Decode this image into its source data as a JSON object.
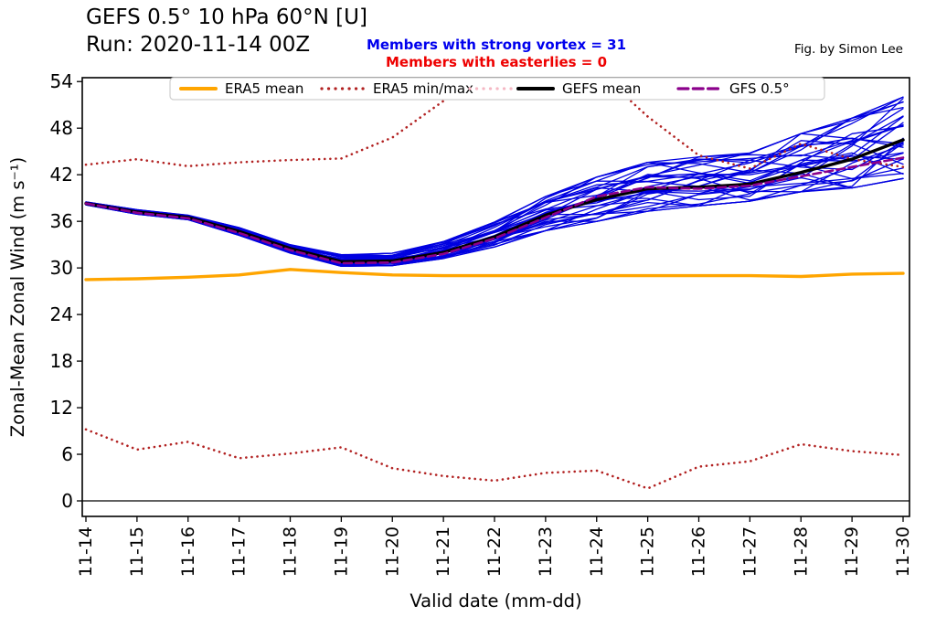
{
  "chart_data": {
    "type": "line",
    "title": "GEFS 0.5° 10 hPa 60°N [U]",
    "subtitle": "Run: 2020-11-14 00Z",
    "xlabel": "Valid date (mm-dd)",
    "ylabel": "Zonal-Mean Zonal Wind (m s⁻¹)",
    "x_ticklabels": [
      "11-14",
      "11-15",
      "11-16",
      "11-17",
      "11-18",
      "11-19",
      "11-20",
      "11-21",
      "11-22",
      "11-23",
      "11-24",
      "11-25",
      "11-26",
      "11-27",
      "11-28",
      "11-29",
      "11-30"
    ],
    "y_ticks": [
      0,
      6,
      12,
      18,
      24,
      30,
      36,
      42,
      48,
      54
    ],
    "ylim": [
      -2,
      54.5
    ],
    "grid": false,
    "legend_position": "top center inside",
    "series": [
      {
        "id": "era5-min",
        "name": "ERA5 min",
        "color": "#b22222",
        "style": "dotted",
        "width": 2.6,
        "values": [
          9.2,
          6.6,
          7.6,
          5.5,
          6.1,
          6.9,
          4.2,
          3.2,
          2.6,
          3.6,
          3.9,
          1.6,
          4.4,
          5.1,
          7.3,
          6.4,
          5.9
        ]
      },
      {
        "id": "era5-max",
        "name": "ERA5 max",
        "color": "#b22222",
        "style": "dotted",
        "width": 2.6,
        "values": [
          43.3,
          44.0,
          43.1,
          43.6,
          43.9,
          44.1,
          46.8,
          51.5,
          55.5,
          57.0,
          55.5,
          49.5,
          44.5,
          42.8,
          46.0,
          44.0,
          43.0
        ]
      },
      {
        "id": "era5-mean",
        "name": "ERA5 mean",
        "color": "#ffa500",
        "style": "solid",
        "width": 3.4,
        "values": [
          28.5,
          28.6,
          28.8,
          29.1,
          29.8,
          29.4,
          29.1,
          29.0,
          29.0,
          29.0,
          29.0,
          29.0,
          29.0,
          29.0,
          28.9,
          29.2,
          29.3
        ]
      },
      {
        "id": "gefs-mean",
        "name": "GEFS mean",
        "color": "#000000",
        "style": "solid",
        "width": 3.4,
        "values": [
          38.3,
          37.2,
          36.5,
          34.7,
          32.5,
          30.8,
          30.9,
          32.0,
          34.0,
          36.8,
          38.8,
          40.2,
          40.4,
          40.8,
          42.3,
          44.0,
          46.5
        ]
      },
      {
        "id": "gfs-05",
        "name": "GFS 0.5°",
        "color": "#8b008b",
        "style": "dashed",
        "width": 2.6,
        "values": [
          38.3,
          37.1,
          36.4,
          34.5,
          32.3,
          30.6,
          30.7,
          31.8,
          33.8,
          36.5,
          39.2,
          40.4,
          40.2,
          40.6,
          41.8,
          43.0,
          44.2
        ]
      }
    ],
    "ensemble": {
      "name": "GEFS ensemble members",
      "count": 31,
      "color": "#0000e0",
      "width": 1.3,
      "seed": 2,
      "envelope_min": [
        38.1,
        36.9,
        36.2,
        34.2,
        31.9,
        30.2,
        30.3,
        31.2,
        32.7,
        34.8,
        36.0,
        37.3,
        38.0,
        38.6,
        39.8,
        40.3,
        41.5
      ],
      "envelope_max": [
        38.5,
        37.5,
        36.8,
        35.2,
        33.0,
        31.7,
        31.9,
        33.4,
        35.9,
        39.2,
        41.7,
        43.6,
        44.3,
        44.8,
        47.3,
        49.3,
        52.0
      ]
    },
    "legend": {
      "entries": [
        {
          "label": "ERA5 mean",
          "samples": [
            {
              "color": "#ffa500",
              "style": "solid",
              "width": 4
            }
          ]
        },
        {
          "label": "ERA5 min/max",
          "samples": [
            {
              "color": "#b22222",
              "style": "dotted",
              "width": 3.2
            }
          ]
        },
        {
          "label": "GEFS mean",
          "samples": [
            {
              "color": "#f5b8c4",
              "style": "dotted",
              "width": 3.2
            },
            {
              "color": "#000000",
              "style": "solid",
              "width": 4
            }
          ]
        },
        {
          "label": "GFS 0.5°",
          "samples": [
            {
              "color": "#8b008b",
              "style": "dashed",
              "width": 3.2
            }
          ]
        }
      ]
    }
  },
  "annotations": {
    "strong_vortex": {
      "text": "Members with strong vortex = 31",
      "color": "#0000ee"
    },
    "easterlies": {
      "text": "Members with easterlies = 0",
      "color": "#ee0000"
    }
  },
  "credit": "Fig. by Simon Lee"
}
